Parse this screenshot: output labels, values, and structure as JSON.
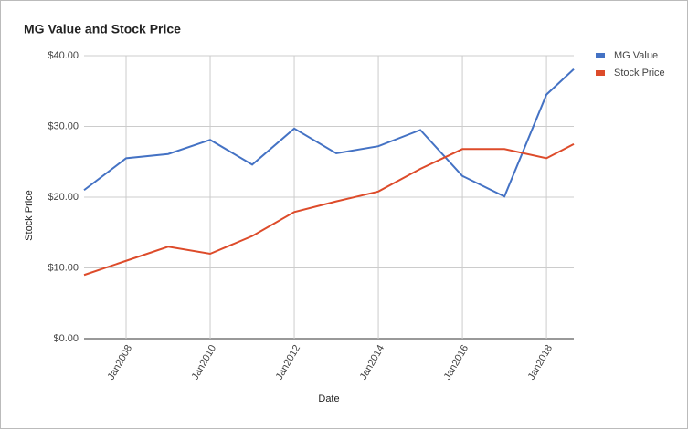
{
  "chart_data": {
    "type": "line",
    "title": "MG Value and Stock Price",
    "x_label": "Date",
    "y_label": "Stock Price",
    "x": [
      2007,
      2008,
      2009,
      2010,
      2011,
      2012,
      2013,
      2014,
      2015,
      2016,
      2017,
      2018,
      2018.65
    ],
    "series": [
      {
        "name": "MG Value",
        "color": "#4472c4",
        "values": [
          21.0,
          25.5,
          26.1,
          28.1,
          24.6,
          29.7,
          26.2,
          27.2,
          29.5,
          23.0,
          20.1,
          34.5,
          38.1
        ]
      },
      {
        "name": "Stock Price",
        "color": "#dd4b2a",
        "values": [
          9.0,
          11.0,
          13.0,
          12.0,
          14.5,
          17.9,
          19.4,
          20.8,
          24.0,
          26.8,
          26.8,
          25.5,
          27.5
        ]
      }
    ],
    "xlim": [
      2007,
      2018.65
    ],
    "xticks": [
      {
        "value": 2008,
        "label": "Jan2008"
      },
      {
        "value": 2010,
        "label": "Jan2010"
      },
      {
        "value": 2012,
        "label": "Jan2012"
      },
      {
        "value": 2014,
        "label": "Jan2014"
      },
      {
        "value": 2016,
        "label": "Jan2016"
      },
      {
        "value": 2018,
        "label": "Jan2018"
      }
    ],
    "ylim": [
      0,
      40
    ],
    "yticks": [
      {
        "value": 0,
        "label": "$0.00"
      },
      {
        "value": 10,
        "label": "$10.00"
      },
      {
        "value": 20,
        "label": "$20.00"
      },
      {
        "value": 30,
        "label": "$30.00"
      },
      {
        "value": 40,
        "label": "$40.00"
      }
    ],
    "grid": true,
    "legend": "right"
  }
}
